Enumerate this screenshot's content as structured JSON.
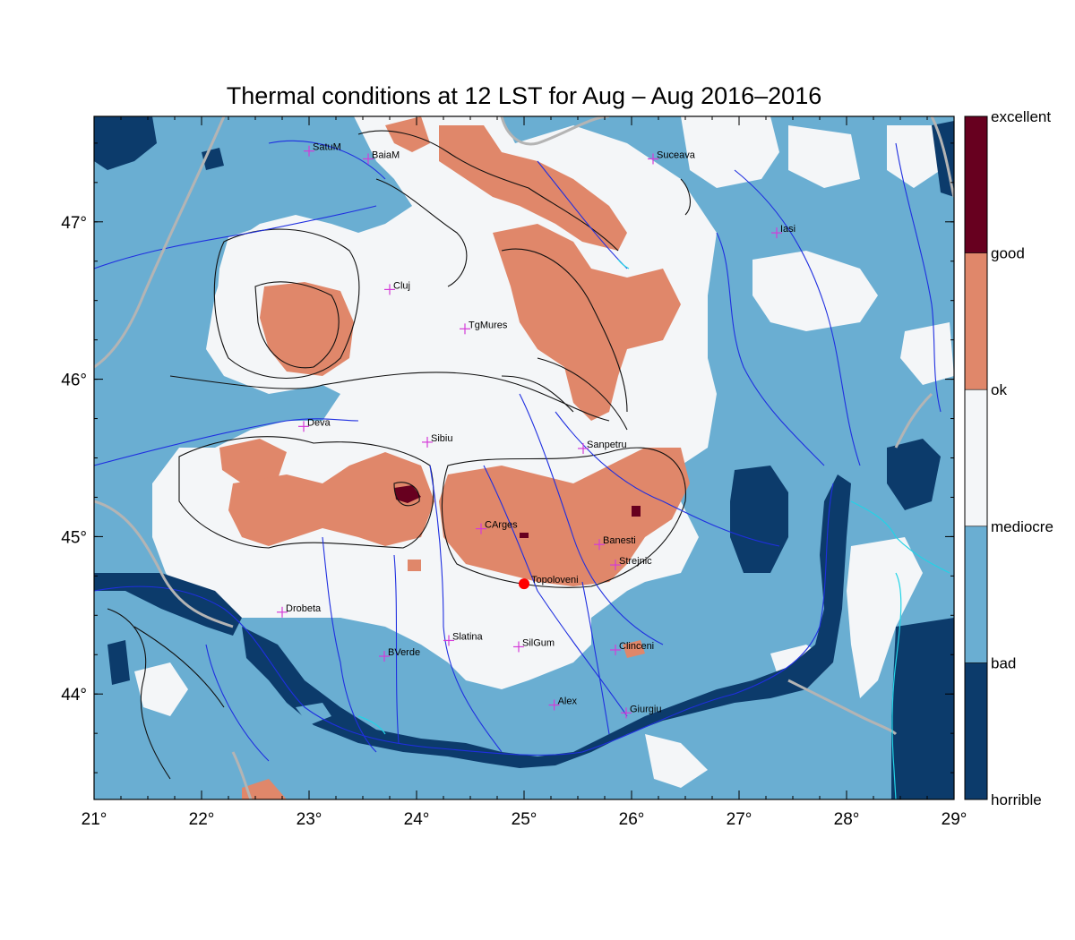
{
  "title": "Thermal conditions at 12 LST for Aug – Aug  2016–2016",
  "axes": {
    "lon_ticks": [
      "21°",
      "22°",
      "23°",
      "24°",
      "25°",
      "26°",
      "27°",
      "28°",
      "29°"
    ],
    "lat_ticks": [
      "44°",
      "45°",
      "46°",
      "47°"
    ]
  },
  "colorbar": {
    "levels": [
      {
        "label": "excellent",
        "color": "#67001f"
      },
      {
        "label": "good",
        "color": "#e0876a"
      },
      {
        "label": "ok",
        "color": "#f4f6f8"
      },
      {
        "label": "mediocre",
        "color": "#6aaed2"
      },
      {
        "label": "bad",
        "color": "#6aaed2"
      },
      {
        "label": "horrible",
        "color": "#0c3b6b"
      }
    ],
    "segment_colors": [
      "#67001f",
      "#e0876a",
      "#f4f6f8",
      "#6aaed2",
      "#0c3b6b"
    ]
  },
  "colors": {
    "horrible": "#0c3b6b",
    "bad": "#6aaed2",
    "ok": "#f4f6f8",
    "good": "#e0876a",
    "excellent": "#67001f",
    "rivers": "#1f2fe0",
    "borders": "#b4b4b4",
    "coast": "#22d3e6",
    "contours": "#111111",
    "city_marker": "#d43bd8",
    "highlight_marker": "#ff0000"
  },
  "cities": [
    {
      "name": "SatuM",
      "lon": 23.0,
      "lat": 47.45
    },
    {
      "name": "BaiaM",
      "lon": 23.55,
      "lat": 47.4
    },
    {
      "name": "Suceava",
      "lon": 26.2,
      "lat": 47.4
    },
    {
      "name": "Iasi",
      "lon": 27.35,
      "lat": 46.93
    },
    {
      "name": "Cluj",
      "lon": 23.75,
      "lat": 46.57
    },
    {
      "name": "TgMures",
      "lon": 24.45,
      "lat": 46.32
    },
    {
      "name": "Deva",
      "lon": 22.95,
      "lat": 45.7
    },
    {
      "name": "Sibiu",
      "lon": 24.1,
      "lat": 45.6
    },
    {
      "name": "Sanpetru",
      "lon": 25.55,
      "lat": 45.56
    },
    {
      "name": "CArges",
      "lon": 24.6,
      "lat": 45.05
    },
    {
      "name": "Banesti",
      "lon": 25.7,
      "lat": 44.95
    },
    {
      "name": "Strejnic",
      "lon": 25.85,
      "lat": 44.82
    },
    {
      "name": "Drobeta",
      "lon": 22.75,
      "lat": 44.52
    },
    {
      "name": "Slatina",
      "lon": 24.3,
      "lat": 44.34
    },
    {
      "name": "SilGum",
      "lon": 24.95,
      "lat": 44.3
    },
    {
      "name": "Clinceni",
      "lon": 25.85,
      "lat": 44.28
    },
    {
      "name": "BVerde",
      "lon": 23.7,
      "lat": 44.24
    },
    {
      "name": "Alex",
      "lon": 25.28,
      "lat": 43.93
    },
    {
      "name": "Giurgiu",
      "lon": 25.95,
      "lat": 43.88
    }
  ],
  "highlight": {
    "name": "Topoloveni",
    "lon": 25.0,
    "lat": 44.7
  }
}
